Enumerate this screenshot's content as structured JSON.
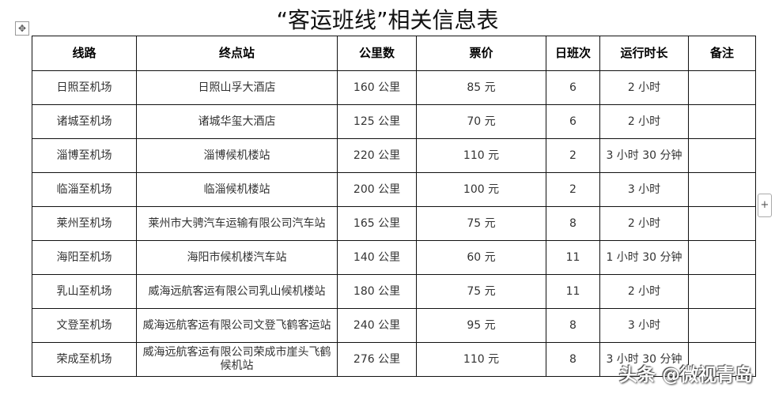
{
  "title": "“客运班线”相关信息表",
  "headers": [
    "线路",
    "终点站",
    "公里数",
    "票价",
    "日班次",
    "运行时长",
    "备注"
  ],
  "rows": [
    [
      "日照至机场",
      "日照山孚大酒店",
      "160 公里",
      "85 元",
      "6",
      "2 小时",
      ""
    ],
    [
      "诸城至机场",
      "诸城华玺大酒店",
      "125 公里",
      "70 元",
      "6",
      "2 小时",
      ""
    ],
    [
      "淄博至机场",
      "淄博候机楼站",
      "220 公里",
      "110 元",
      "2",
      "3 小时 30 分钟",
      ""
    ],
    [
      "临淄至机场",
      "临淄候机楼站",
      "200 公里",
      "100 元",
      "2",
      "3 小时",
      ""
    ],
    [
      "莱州至机场",
      "莱州市大骋汽车运输有限公司汽车站",
      "165 公里",
      "75 元",
      "8",
      "2 小时",
      ""
    ],
    [
      "海阳至机场",
      "海阳市候机楼汽车站",
      "140 公里",
      "60 元",
      "11",
      "1 小时 30 分钟",
      ""
    ],
    [
      "乳山至机场",
      "威海远航客运有限公司乳山候机楼站",
      "180 公里",
      "75 元",
      "11",
      "2 小时",
      ""
    ],
    [
      "文登至机场",
      "威海远航客运有限公司文登飞鹤客运站",
      "240 公里",
      "95 元",
      "8",
      "3 小时",
      ""
    ],
    [
      "荣成至机场",
      "威海远航客运有限公司荣成市崖头飞鹤候机站",
      "276 公里",
      "110 元",
      "8",
      "3 小时 30 分钟",
      ""
    ]
  ],
  "watermark": "头条 @微视青岛",
  "icons": {
    "move": "move-handle-icon",
    "add": "plus-icon"
  }
}
